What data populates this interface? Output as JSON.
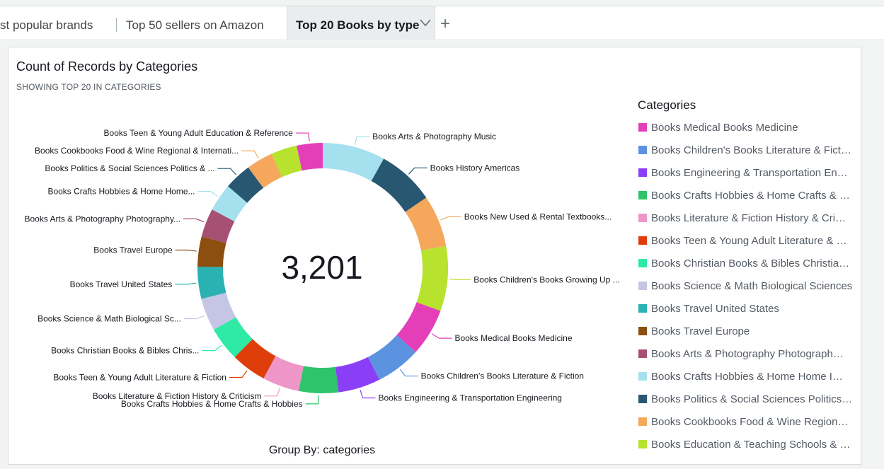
{
  "tabs": [
    {
      "label": "st popular brands"
    },
    {
      "label": "Top 50 sellers on Amazon"
    },
    {
      "label": "Top 20 Books by type"
    }
  ],
  "visual": {
    "title": "Count of Records by Categories",
    "subtitle": "SHOWING TOP 20 IN CATEGORIES",
    "total_label": "3,201",
    "group_by": "Group By: categories",
    "legend_title": "Categories"
  },
  "chart_data": {
    "type": "pie",
    "donut": true,
    "title": "Count of Records by Categories",
    "total": 3201,
    "legend_placement": "right",
    "slices": [
      {
        "label": "Books Arts & Photography Music",
        "legend": "",
        "value": 230,
        "color": "#a5e0ef"
      },
      {
        "label": "Books History Americas",
        "legend": "",
        "value": 210,
        "color": "#285772"
      },
      {
        "label": "Books New  Used & Rental Textbooks...",
        "legend": "",
        "value": 190,
        "color": "#f5a85b"
      },
      {
        "label": "Books Children's Books Growing Up ...",
        "legend": "",
        "value": 238,
        "color": "#b7e22d"
      },
      {
        "label": "Books Medical Books Medicine",
        "legend": "Books Medical Books Medicine",
        "value": 175,
        "color": "#e43eb8"
      },
      {
        "label": "Books Children's Books Literature & Fiction",
        "legend": "Books Children's Books Literature & Fict…",
        "value": 165,
        "color": "#5b93e0"
      },
      {
        "label": "Books Engineering & Transportation Engineering",
        "legend": "Books Engineering & Transportation En…",
        "value": 155,
        "color": "#8a3ef5"
      },
      {
        "label": "Books Crafts  Hobbies & Home Crafts & Hobbies",
        "legend": "Books Crafts Hobbies & Home Crafts & …",
        "value": 145,
        "color": "#2ec46b"
      },
      {
        "label": "Books Literature & Fiction History & Criticism",
        "legend": "Books Literature & Fiction History & Cri…",
        "value": 135,
        "color": "#ee96c8"
      },
      {
        "label": "Books Teen & Young Adult Literature & Fiction",
        "legend": "Books Teen & Young Adult Literature & …",
        "value": 130,
        "color": "#df3e0a"
      },
      {
        "label": "Books Christian Books & Bibles Chris...",
        "legend": "Books Christian Books & Bibles Christia…",
        "value": 125,
        "color": "#2eeaa6"
      },
      {
        "label": "Books Science & Math Biological Sc...",
        "legend": "Books Science & Math Biological Sciences",
        "value": 120,
        "color": "#c5c5e5"
      },
      {
        "label": "Books Travel United States",
        "legend": "Books Travel United States",
        "value": 118,
        "color": "#2ab2b2"
      },
      {
        "label": "Books Travel Europe",
        "legend": "Books Travel Europe",
        "value": 110,
        "color": "#8c4f10"
      },
      {
        "label": "Books Arts & Photography Photography...",
        "legend": "Books Arts & Photography Photograph…",
        "value": 105,
        "color": "#a65073"
      },
      {
        "label": "Books Crafts  Hobbies & Home Home...",
        "legend": "Books Crafts Hobbies & Home Home I…",
        "value": 102,
        "color": "#a5e0ef"
      },
      {
        "label": "Books Politics & Social Sciences Politics & ...",
        "legend": "Books Politics & Social Sciences Politics…",
        "value": 100,
        "color": "#285772"
      },
      {
        "label": "Books Cookbooks  Food & Wine Regional & Internati...",
        "legend": "Books Cookbooks Food & Wine Region…",
        "value": 98,
        "color": "#f5a85b"
      },
      {
        "label": "",
        "legend": "Books Education & Teaching Schools & …",
        "value": 95,
        "color": "#b7e22d"
      },
      {
        "label": "Books Teen & Young Adult Education & Reference",
        "legend": "",
        "value": 95,
        "color": "#e43eb8"
      }
    ]
  }
}
